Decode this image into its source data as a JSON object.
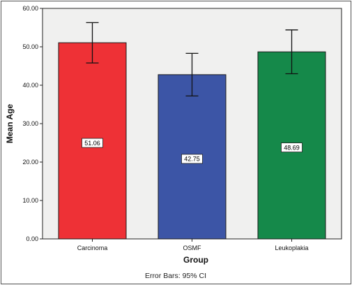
{
  "chart_data": {
    "type": "bar",
    "categories": [
      "Carcinoma",
      "OSMF",
      "Leukoplakia"
    ],
    "values": [
      51.06,
      42.75,
      48.69
    ],
    "value_labels": [
      "51.06",
      "42.75",
      "48.69"
    ],
    "error_bars": [
      {
        "low": 45.8,
        "high": 56.3
      },
      {
        "low": 37.2,
        "high": 48.3
      },
      {
        "low": 43.0,
        "high": 54.4
      }
    ],
    "colors": [
      "#ee3136",
      "#3c55a6",
      "#15894a"
    ],
    "xlabel": "Group",
    "ylabel": "Mean Age",
    "ylim": [
      0,
      60
    ],
    "yticks": [
      0,
      10,
      20,
      30,
      40,
      50,
      60
    ],
    "ytick_labels": [
      "0.00",
      "10.00",
      "20.00",
      "30.00",
      "40.00",
      "50.00",
      "60.00"
    ],
    "plot_background": "#f0f0ef",
    "grid": false,
    "footnote": "Error Bars: 95% CI"
  }
}
